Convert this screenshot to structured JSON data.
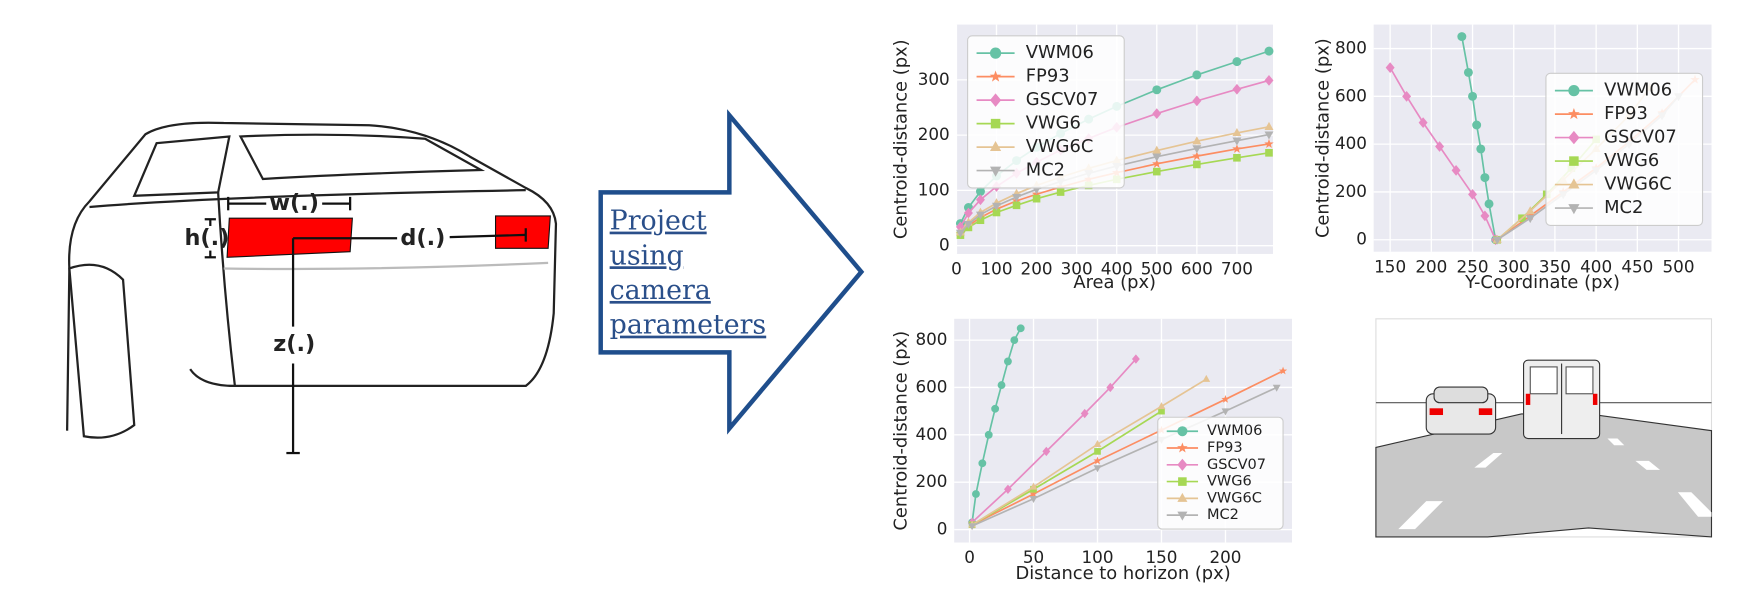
{
  "diagram": {
    "w": "w(.)",
    "h": "h(.)",
    "d": "d(.)",
    "z": "z(.)",
    "arrow_text": [
      "Project",
      "using",
      "camera",
      "parameters"
    ]
  },
  "chart_data": [
    {
      "type": "line",
      "xlabel": "Area (px)",
      "ylabel": "Centroid-distance (px)",
      "legend": "upper left",
      "grid": true,
      "x": [
        10,
        30,
        60,
        100,
        150,
        200,
        260,
        330,
        400,
        500,
        600,
        700,
        780
      ],
      "xlim": [
        0,
        790
      ],
      "ylim": [
        -15,
        400
      ],
      "xticks": [
        0,
        100,
        200,
        300,
        400,
        500,
        600,
        700
      ],
      "yticks": [
        0,
        100,
        200,
        300
      ],
      "series": [
        {
          "name": "VWM06",
          "color": "#66c2a5",
          "marker": "circle",
          "values": [
            40,
            69,
            98,
            126,
            154,
            178,
            203,
            229,
            252,
            282,
            309,
            333,
            352
          ]
        },
        {
          "name": "FP93",
          "color": "#fc8d62",
          "marker": "star",
          "values": [
            21,
            36,
            51,
            66,
            81,
            93,
            106,
            120,
            132,
            148,
            162,
            175,
            184
          ]
        },
        {
          "name": "GSCV07",
          "color": "#e78ac3",
          "marker": "diamond",
          "values": [
            34,
            59,
            83,
            107,
            131,
            151,
            173,
            194,
            214,
            239,
            262,
            283,
            299
          ]
        },
        {
          "name": "VWG6",
          "color": "#a6d854",
          "marker": "square",
          "values": [
            19,
            33,
            46,
            60,
            73,
            85,
            97,
            109,
            120,
            134,
            147,
            159,
            168
          ]
        },
        {
          "name": "VWG6C",
          "color": "#e5c494",
          "marker": "triangle-up",
          "values": [
            24,
            42,
            60,
            77,
            94,
            109,
            124,
            140,
            154,
            172,
            189,
            204,
            215
          ]
        },
        {
          "name": "MC2",
          "color": "#b3b3b3",
          "marker": "triangle-down",
          "values": [
            23,
            39,
            56,
            72,
            88,
            102,
            116,
            131,
            144,
            161,
            176,
            190,
            201
          ]
        }
      ]
    },
    {
      "type": "line",
      "xlabel": "Y-Coordinate (px)",
      "ylabel": "Centroid-distance (px)",
      "legend": "center right",
      "grid": true,
      "xlim": [
        130,
        540
      ],
      "ylim": [
        -50,
        900
      ],
      "xticks": [
        150,
        200,
        250,
        300,
        350,
        400,
        450,
        500
      ],
      "yticks": [
        0,
        200,
        400,
        600,
        800
      ],
      "series": [
        {
          "name": "VWM06",
          "color": "#66c2a5",
          "marker": "circle",
          "x": [
            237,
            245,
            250,
            255,
            260,
            265,
            270,
            278
          ],
          "values": [
            850,
            700,
            600,
            480,
            380,
            260,
            150,
            0
          ]
        },
        {
          "name": "FP93",
          "color": "#fc8d62",
          "marker": "star",
          "x": [
            280,
            320,
            360,
            400,
            440,
            480,
            520
          ],
          "values": [
            0,
            100,
            200,
            300,
            410,
            530,
            670
          ]
        },
        {
          "name": "GSCV07",
          "color": "#e78ac3",
          "marker": "diamond",
          "x": [
            150,
            170,
            190,
            210,
            230,
            250,
            265,
            278
          ],
          "values": [
            720,
            600,
            490,
            390,
            290,
            190,
            100,
            0
          ]
        },
        {
          "name": "VWG6",
          "color": "#a6d854",
          "marker": "square",
          "x": [
            280,
            310,
            340,
            370,
            400
          ],
          "values": [
            0,
            90,
            190,
            300,
            420
          ]
        },
        {
          "name": "VWG6C",
          "color": "#e5c494",
          "marker": "triangle-up",
          "x": [
            280,
            320,
            360,
            400,
            440,
            465
          ],
          "values": [
            0,
            120,
            250,
            380,
            520,
            635
          ]
        },
        {
          "name": "MC2",
          "color": "#b3b3b3",
          "marker": "triangle-down",
          "x": [
            280,
            320,
            360,
            400,
            440,
            480,
            500
          ],
          "values": [
            0,
            90,
            190,
            290,
            400,
            520,
            600
          ]
        }
      ]
    },
    {
      "type": "line",
      "xlabel": "Distance to horizon (px)",
      "ylabel": "Centroid-distance (px)",
      "legend": "lower right",
      "grid": true,
      "xlim": [
        -12,
        252
      ],
      "ylim": [
        -55,
        890
      ],
      "xticks": [
        0,
        50,
        100,
        150,
        200
      ],
      "yticks": [
        0,
        200,
        400,
        600,
        800
      ],
      "series": [
        {
          "name": "VWM06",
          "color": "#66c2a5",
          "marker": "circle",
          "x": [
            2,
            5,
            10,
            15,
            20,
            25,
            30,
            35,
            40
          ],
          "values": [
            30,
            150,
            280,
            400,
            510,
            610,
            710,
            800,
            850
          ]
        },
        {
          "name": "FP93",
          "color": "#fc8d62",
          "marker": "star",
          "x": [
            2,
            50,
            100,
            150,
            200,
            245
          ],
          "values": [
            20,
            150,
            290,
            420,
            550,
            670
          ]
        },
        {
          "name": "GSCV07",
          "color": "#e78ac3",
          "marker": "diamond",
          "x": [
            2,
            30,
            60,
            90,
            110,
            130
          ],
          "values": [
            30,
            170,
            330,
            490,
            600,
            720
          ]
        },
        {
          "name": "VWG6",
          "color": "#a6d854",
          "marker": "square",
          "x": [
            2,
            50,
            100,
            150
          ],
          "values": [
            20,
            170,
            330,
            500
          ]
        },
        {
          "name": "VWG6C",
          "color": "#e5c494",
          "marker": "triangle-up",
          "x": [
            2,
            50,
            100,
            150,
            185
          ],
          "values": [
            20,
            180,
            360,
            520,
            635
          ]
        },
        {
          "name": "MC2",
          "color": "#b3b3b3",
          "marker": "triangle-down",
          "x": [
            2,
            50,
            100,
            150,
            200,
            240
          ],
          "values": [
            15,
            130,
            260,
            380,
            500,
            600
          ]
        }
      ]
    }
  ]
}
